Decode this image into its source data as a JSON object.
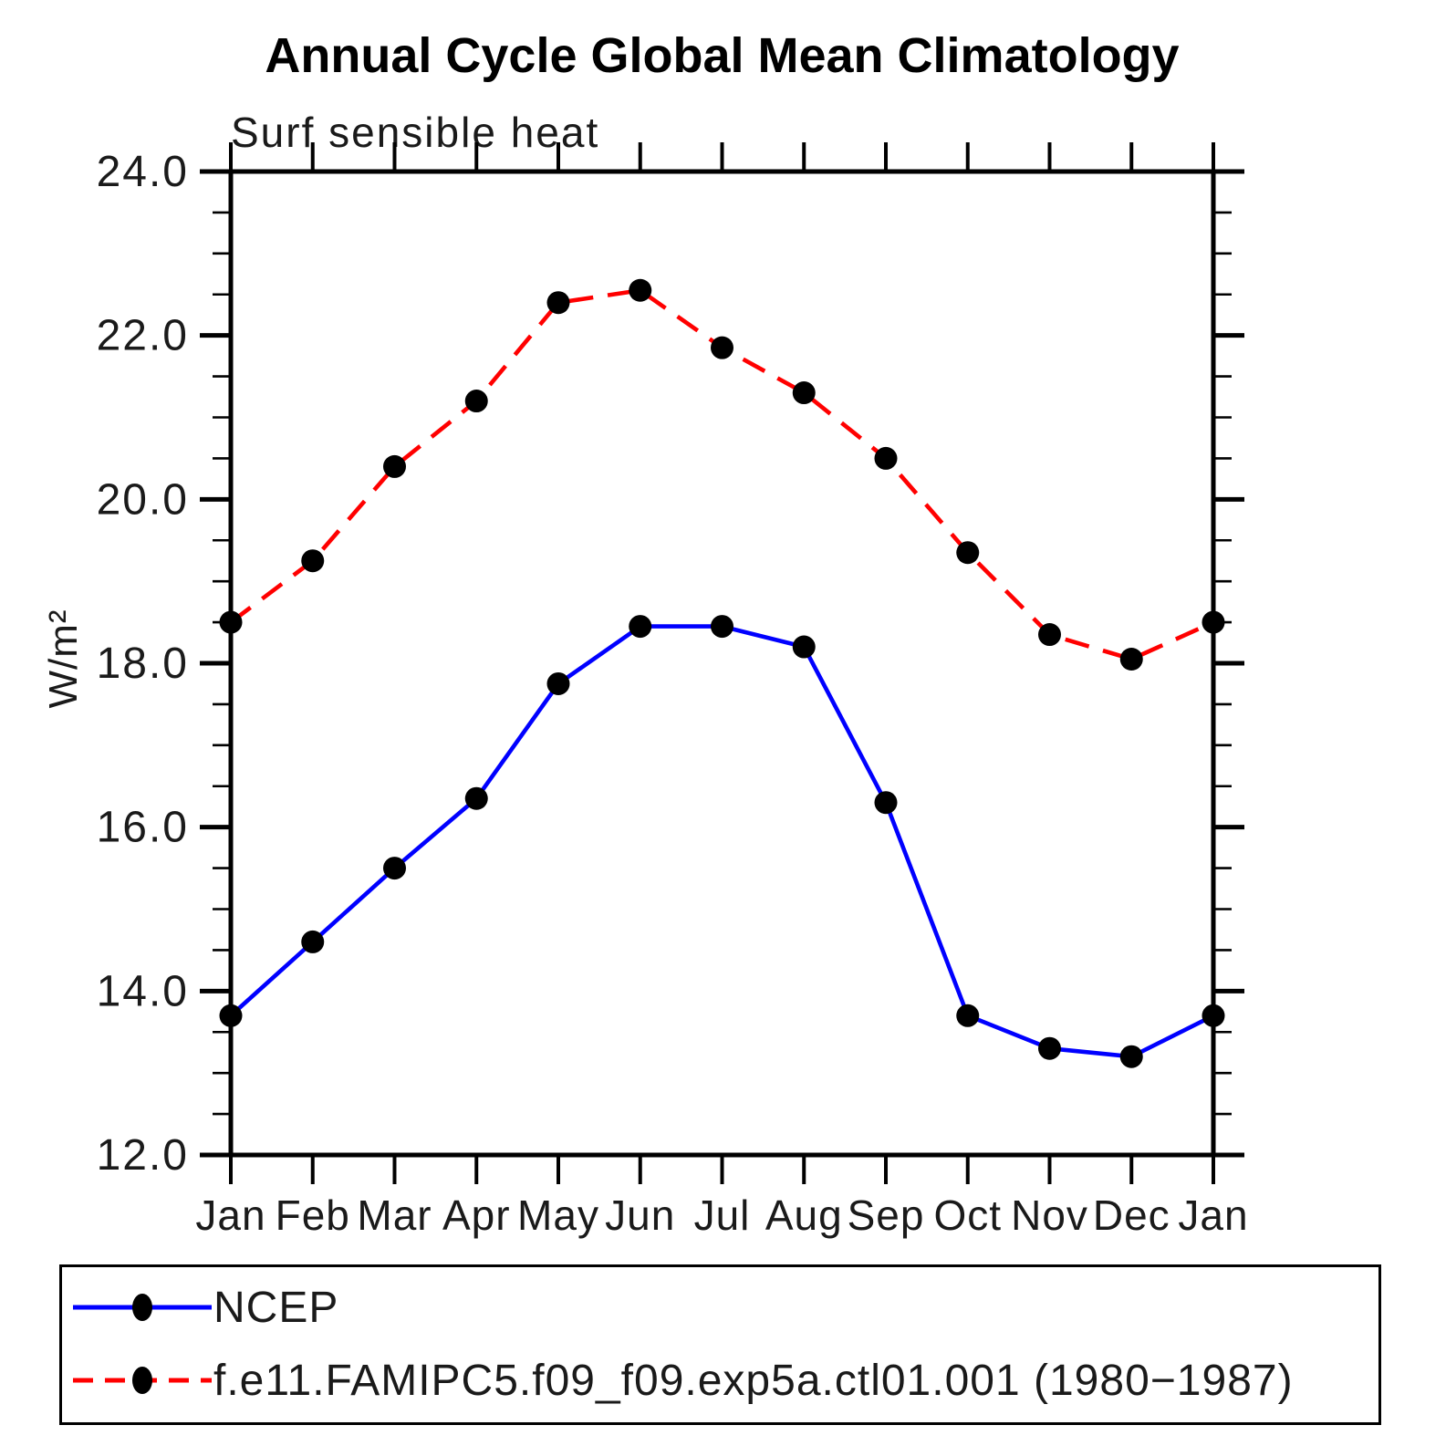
{
  "chart_data": {
    "type": "line",
    "title": "Annual Cycle Global Mean Climatology",
    "subtitle": "Surf sensible heat",
    "ylabel": "W/m²",
    "xlabel": "",
    "x_categories": [
      "Jan",
      "Feb",
      "Mar",
      "Apr",
      "May",
      "Jun",
      "Jul",
      "Aug",
      "Sep",
      "Oct",
      "Nov",
      "Dec",
      "Jan"
    ],
    "ylim": [
      12.0,
      24.0
    ],
    "y_major_tick_labels": [
      "12.0",
      "14.0",
      "16.0",
      "18.0",
      "20.0",
      "22.0",
      "24.0"
    ],
    "y_major_step": 2.0,
    "y_minor_step": 0.5,
    "grid": false,
    "legend_position": "bottom-left-box",
    "axis_color": "#000000",
    "series": [
      {
        "name": "NCEP",
        "color": "#0000ff",
        "line_style": "solid",
        "marker": "filled-circle",
        "marker_color": "#000000",
        "values": [
          13.7,
          14.6,
          15.5,
          16.35,
          17.75,
          18.45,
          18.45,
          18.2,
          16.3,
          13.7,
          13.3,
          13.2,
          13.7
        ]
      },
      {
        "name": "f.e11.FAMIPC5.f09_f09.exp5a.ctl01.001 (1980−1987)",
        "color": "#ff0000",
        "line_style": "dashed",
        "marker": "filled-circle",
        "marker_color": "#000000",
        "values": [
          18.5,
          19.25,
          20.4,
          21.2,
          22.4,
          22.55,
          21.85,
          21.3,
          20.5,
          19.35,
          18.35,
          18.05,
          18.5
        ]
      }
    ]
  }
}
